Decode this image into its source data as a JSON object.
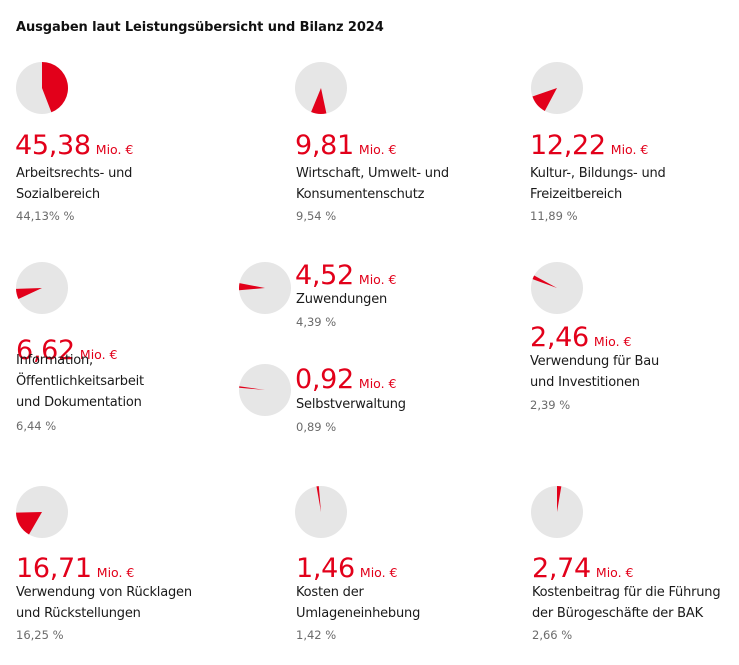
{
  "title": "Ausgaben laut Leistungsübersicht und Bilanz 2024",
  "colors": {
    "accent": "#e2001a",
    "pie_background": "#e6e6e6"
  },
  "chart_data": {
    "type": "pie",
    "title": "Ausgaben laut Leistungsübersicht und Bilanz 2024",
    "unit": "Mio. €",
    "items": [
      {
        "value": "45,38",
        "unit": "Mio. €",
        "label_lines": [
          "Arbeitsrechts- und",
          "Sozialbereich"
        ],
        "percent_text": "44,13% %",
        "share": 0.4413
      },
      {
        "value": "9,81",
        "unit": "Mio. €",
        "label_lines": [
          "Wirtschaft, Umwelt- und",
          "Konsumentenschutz"
        ],
        "percent_text": "9,54 %",
        "share": 0.0954
      },
      {
        "value": "12,22",
        "unit": "Mio. €",
        "label_lines": [
          "Kultur-, Bildungs- und",
          "Freizeitbereich"
        ],
        "percent_text": "11,89 %",
        "share": 0.1189
      },
      {
        "value": "6,62",
        "unit": "Mio. €",
        "label_lines": [
          "Information,",
          "Öffentlichkeitsarbeit",
          "und Dokumentation"
        ],
        "percent_text": "6,44 %",
        "share": 0.0644
      },
      {
        "value": "4,52",
        "unit": "Mio. €",
        "label_lines": [
          "Zuwendungen"
        ],
        "percent_text": "4,39 %",
        "share": 0.0439
      },
      {
        "value": "0,92",
        "unit": "Mio. €",
        "label_lines": [
          "Selbstverwaltung"
        ],
        "percent_text": "0,89 %",
        "share": 0.0089
      },
      {
        "value": "2,46",
        "unit": "Mio. €",
        "label_lines": [
          "Verwendung für Bau",
          "und Investitionen"
        ],
        "percent_text": "2,39 %",
        "share": 0.0239
      },
      {
        "value": "16,71",
        "unit": "Mio. €",
        "label_lines": [
          "Verwendung von Rücklagen",
          "und Rückstellungen"
        ],
        "percent_text": "16,25 %",
        "share": 0.1625
      },
      {
        "value": "1,46",
        "unit": "Mio. €",
        "label_lines": [
          "Kosten der",
          "Umlageneinhebung"
        ],
        "percent_text": "1,42 %",
        "share": 0.0142
      },
      {
        "value": "2,74",
        "unit": "Mio. €",
        "label_lines": [
          "Kostenbeitrag für die Führung",
          "der Bürogeschäfte der BAK"
        ],
        "percent_text": "2,66 %",
        "share": 0.0266
      }
    ]
  }
}
